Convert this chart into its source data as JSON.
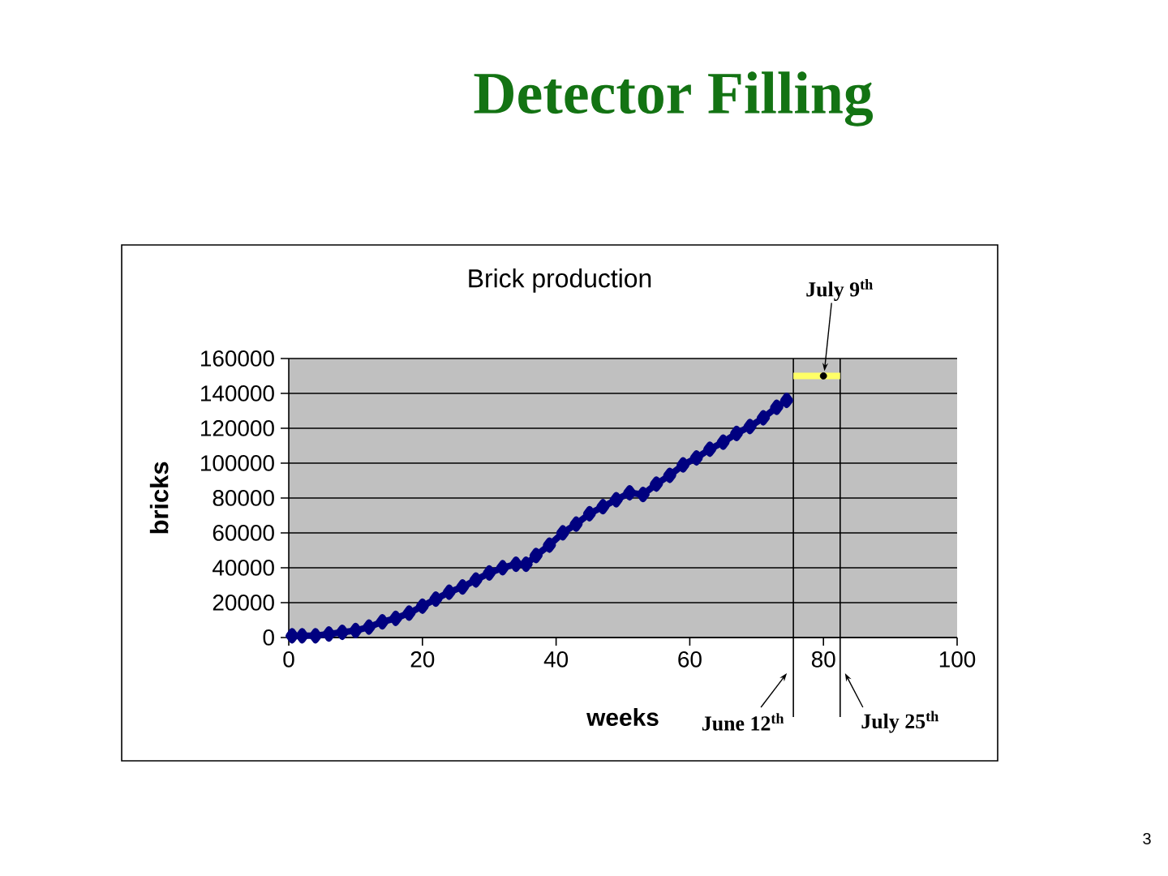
{
  "chart_data": {
    "type": "line",
    "title": "Detector Filling",
    "subtitle": "Brick production",
    "xlabel": "weeks",
    "ylabel": "bricks",
    "xlim": [
      0,
      100
    ],
    "xticks": [
      0,
      20,
      40,
      60,
      80,
      100
    ],
    "ylim": [
      0,
      160000
    ],
    "yticks": [
      0,
      20000,
      40000,
      60000,
      80000,
      100000,
      120000,
      140000,
      160000
    ],
    "grid": "y",
    "series": [
      {
        "color": "#000080",
        "marker": "diamond",
        "x": [
          0.5,
          2,
          4,
          6,
          8,
          10,
          12,
          14,
          16,
          18,
          20,
          22,
          24,
          26,
          28,
          30,
          32,
          34,
          35.5,
          37,
          39,
          41,
          43,
          45,
          47,
          49,
          51,
          53,
          55,
          57,
          59,
          61,
          63,
          65,
          67,
          69,
          71,
          73,
          74.5
        ],
        "values": [
          1000,
          1000,
          1000,
          2000,
          3000,
          4000,
          6000,
          9000,
          11000,
          14000,
          18000,
          22000,
          26000,
          29000,
          33000,
          37000,
          40000,
          42000,
          42000,
          47000,
          53000,
          60000,
          65000,
          71000,
          75000,
          79000,
          83000,
          82000,
          88000,
          93000,
          99000,
          103000,
          108000,
          112000,
          117000,
          121000,
          126000,
          132000,
          136000
        ]
      },
      {
        "color": "#ffff66",
        "marker": "none",
        "x": [
          75.5,
          82.5
        ],
        "values": [
          150000,
          150000
        ]
      },
      {
        "type": "scatter",
        "color": "#000000",
        "marker": "circle",
        "x": [
          80
        ],
        "values": [
          150000
        ]
      }
    ],
    "ref_lines": [
      {
        "axis": "x",
        "value": 75.5,
        "label": "June 12$^{th}$",
        "color": "#000000"
      },
      {
        "axis": "x",
        "value": 82.5,
        "label": "July 25$^{th}$",
        "color": "#000000"
      }
    ],
    "annotations": [
      {
        "text": "July 9$^{th}$",
        "x": 80,
        "y": 150000
      },
      "3"
    ]
  }
}
